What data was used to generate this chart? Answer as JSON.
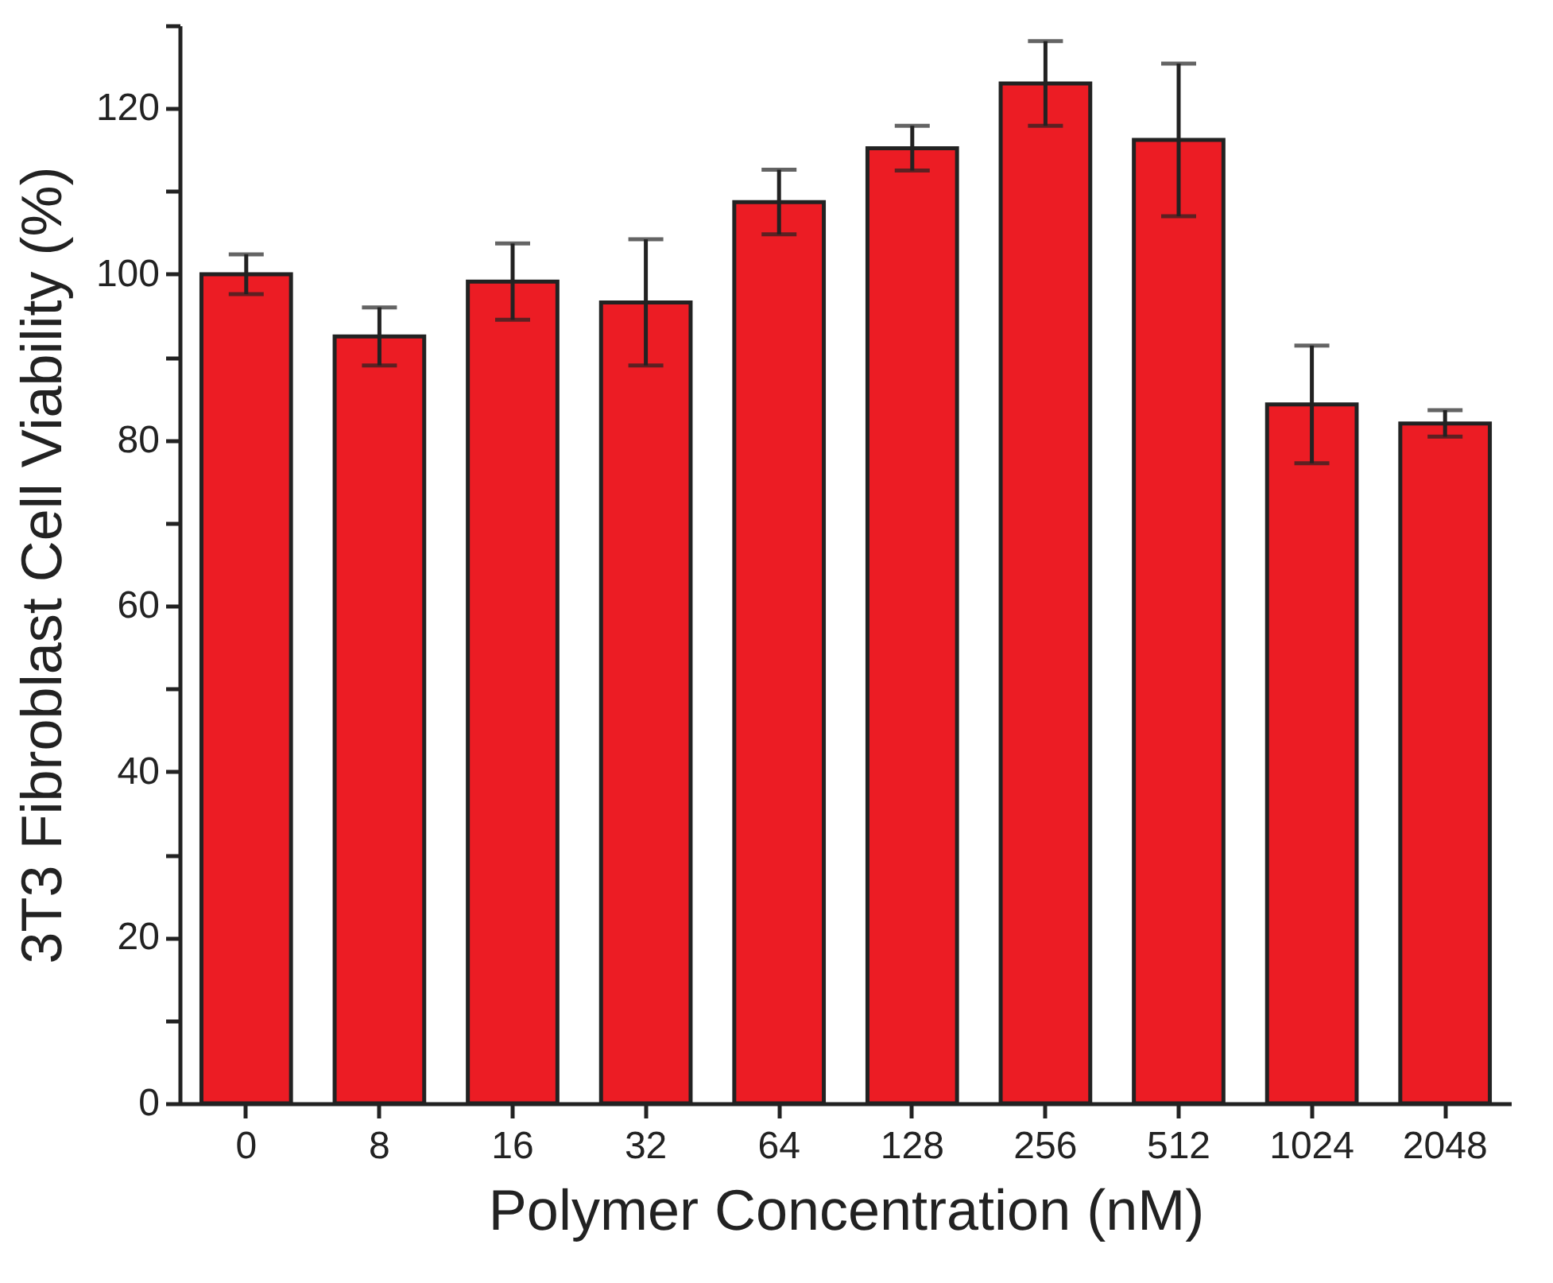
{
  "chart_data": {
    "type": "bar",
    "xlabel": "Polymer Concentration (nM)",
    "ylabel": "3T3 Fibroblast Cell Viability (%)",
    "categories": [
      "0",
      "8",
      "16",
      "32",
      "64",
      "128",
      "256",
      "512",
      "1024",
      "2048"
    ],
    "series": [
      {
        "color": "#ec1c24",
        "values": [
          100,
          92.5,
          99.1,
          96.6,
          108.7,
          115.2,
          123.0,
          116.2,
          84.3,
          82.0
        ],
        "errors": [
          2.4,
          3.5,
          4.6,
          7.6,
          3.9,
          2.7,
          5.1,
          9.2,
          7.1,
          1.6
        ]
      }
    ],
    "ylim": [
      0,
      130
    ],
    "yticks": [
      0,
      {
        "value": 10,
        "label": null
      },
      20,
      {
        "value": 30,
        "label": null
      },
      40,
      {
        "value": 50,
        "label": null
      },
      60,
      {
        "value": 70,
        "label": null
      },
      80,
      {
        "value": 90,
        "label": null
      },
      100,
      {
        "value": 110,
        "label": null
      },
      120,
      {
        "value": 130,
        "label": null
      }
    ],
    "grid": false
  }
}
